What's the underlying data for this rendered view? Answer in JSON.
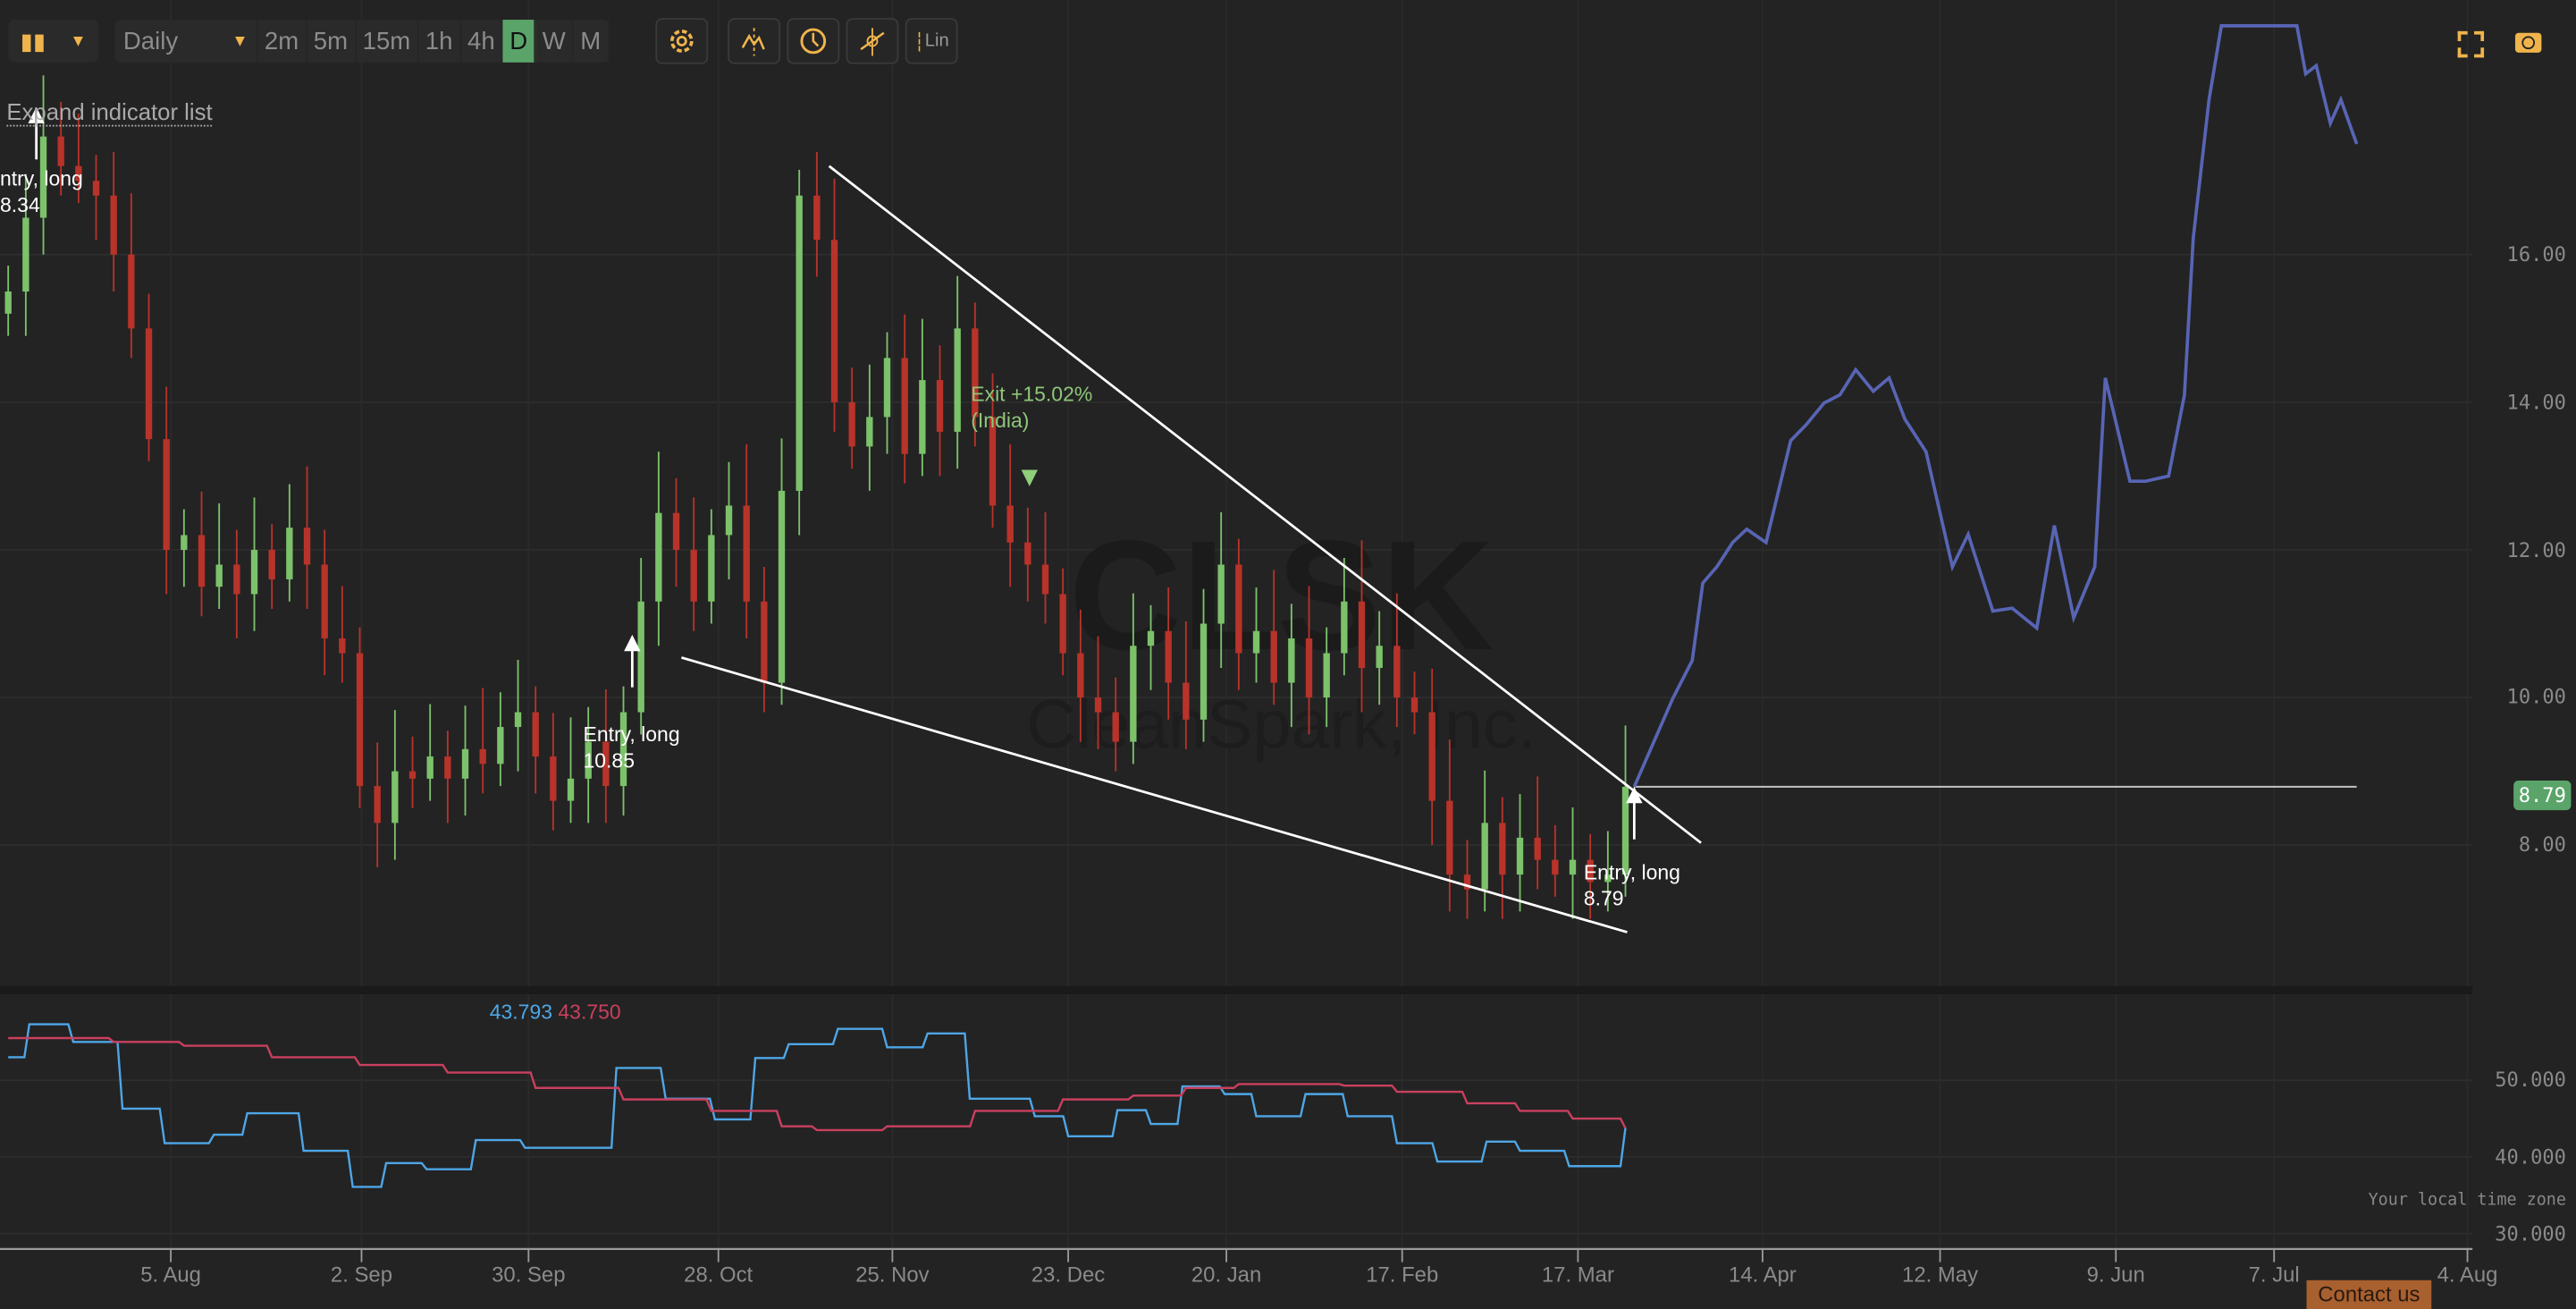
{
  "toolbar": {
    "chart_type_icon": "candlestick-icon",
    "interval_selected": "Daily",
    "intervals": [
      "2m",
      "5m",
      "15m",
      "1h",
      "4h",
      "D",
      "W",
      "M"
    ],
    "active_interval": "D",
    "icons": [
      "gear-icon",
      "indicators-icon",
      "clock-icon",
      "crosshair-icon"
    ],
    "scale_label": "Lin",
    "right_icons": [
      "fullscreen-icon",
      "camera-icon"
    ]
  },
  "expand_indicator_list": "Expand indicator list",
  "watermark": {
    "ticker": "CLSK",
    "company": "CleanSpark, Inc."
  },
  "annotations": {
    "entry1": {
      "line1": "ntry, long",
      "line2": "8.34"
    },
    "entry2": {
      "line1": "Entry, long",
      "line2": "10.85"
    },
    "entry3": {
      "line1": "Entry, long",
      "line2": "8.79"
    },
    "exit1": {
      "line1": "Exit +15.02%",
      "line2": "(India)"
    }
  },
  "last_price_label": "8.79",
  "indicator_values": {
    "blue": "43.793",
    "red": "43.750"
  },
  "footer": {
    "timezone": "Your local time zone",
    "contact": "Contact us"
  },
  "colors": {
    "up": "#7cc26b",
    "down": "#b8332a",
    "forecast": "#5865b5",
    "ind_blue": "#4ea6e6",
    "ind_red": "#c9405e",
    "last_price": "#5aa469",
    "accent": "#f0b44c"
  },
  "chart_data": [
    {
      "type": "candlestick",
      "title": "CLSK",
      "ylim": [
        6.09,
        19.45
      ],
      "y_ticks": [
        "8.00",
        "10.00",
        "12.00",
        "14.00",
        "16.00"
      ],
      "y_tick_values": [
        8,
        10,
        12,
        14,
        16
      ],
      "x_ticks": [
        [
          "5. Aug",
          9.25
        ],
        [
          "2. Sep",
          20.1
        ],
        [
          "30. Sep",
          29.6
        ],
        [
          "28. Oct",
          40.4
        ],
        [
          "25. Nov",
          50.3
        ],
        [
          "23. Dec",
          60.3
        ],
        [
          "20. Jan",
          69.3
        ],
        [
          "17. Feb",
          79.3
        ],
        [
          "17. Mar",
          89.3
        ],
        [
          "14. Apr",
          99.8
        ],
        [
          "12. May",
          109.9
        ],
        [
          "9. Jun",
          119.9
        ],
        [
          "7. Jul",
          128.9
        ],
        [
          "4. Aug",
          139.9
        ]
      ],
      "xlim": [
        0,
        146
      ],
      "closes": [
        15.5,
        16.5,
        17.6,
        17.2,
        17.0,
        16.8,
        16.0,
        15.0,
        13.5,
        12.0,
        12.2,
        11.5,
        11.8,
        11.4,
        12.0,
        11.6,
        12.3,
        11.8,
        10.8,
        10.6,
        8.8,
        8.3,
        9.0,
        8.9,
        9.2,
        8.9,
        9.3,
        9.1,
        9.6,
        9.8,
        9.2,
        8.6,
        8.9,
        9.4,
        8.8,
        9.8,
        11.3,
        12.5,
        12.0,
        11.3,
        12.2,
        12.6,
        11.3,
        10.2,
        12.8,
        16.8,
        16.2,
        14.0,
        13.4,
        13.8,
        14.6,
        13.3,
        14.3,
        13.6,
        15.0,
        13.8,
        12.6,
        12.1,
        11.8,
        11.4,
        10.6,
        10.0,
        9.8,
        9.4,
        10.7,
        10.9,
        10.2,
        9.7,
        11.0,
        11.8,
        10.6,
        10.9,
        10.2,
        10.8,
        10.0,
        10.6,
        11.3,
        10.4,
        10.7,
        10.0,
        9.8,
        8.6,
        7.6,
        7.4,
        8.3,
        7.6,
        8.1,
        7.8,
        7.6,
        7.8,
        7.5,
        7.6,
        8.79
      ],
      "forecast": [
        [
          92.5,
          8.79
        ],
        [
          94.7,
          9.99
        ],
        [
          95.8,
          10.5
        ],
        [
          96.4,
          11.55
        ],
        [
          97.2,
          11.77
        ],
        [
          98.1,
          12.1
        ],
        [
          98.9,
          12.28
        ],
        [
          100,
          12.1
        ],
        [
          101.4,
          13.48
        ],
        [
          102.3,
          13.7
        ],
        [
          103.3,
          13.99
        ],
        [
          104.2,
          14.1
        ],
        [
          105.1,
          14.44
        ],
        [
          106.1,
          14.15
        ],
        [
          107,
          14.33
        ],
        [
          107.9,
          13.77
        ],
        [
          109.1,
          13.33
        ],
        [
          110.6,
          11.77
        ],
        [
          111.5,
          12.21
        ],
        [
          112.9,
          11.17
        ],
        [
          114,
          11.21
        ],
        [
          115.4,
          10.94
        ],
        [
          116.4,
          12.33
        ],
        [
          117.5,
          11.08
        ],
        [
          118.7,
          11.77
        ],
        [
          119.3,
          14.33
        ],
        [
          120.7,
          12.93
        ],
        [
          121.6,
          12.93
        ],
        [
          122.9,
          13.0
        ],
        [
          123.8,
          14.1
        ],
        [
          124.3,
          16.22
        ],
        [
          125.2,
          18.1
        ],
        [
          125.9,
          19.1
        ],
        [
          130.2,
          19.1
        ],
        [
          130.7,
          18.45
        ],
        [
          131.3,
          18.56
        ],
        [
          132.1,
          17.78
        ],
        [
          132.7,
          18.1
        ],
        [
          133.6,
          17.5
        ]
      ],
      "trendlines": [
        [
          [
            46.7,
            17.2
          ],
          [
            96.3,
            8.03
          ]
        ],
        [
          [
            38.3,
            10.54
          ],
          [
            92.1,
            6.82
          ]
        ]
      ],
      "last_price": 8.79,
      "last_price_line": [
        92.5,
        133.6
      ],
      "entries": [
        [
          1.6,
          8.34
        ],
        [
          35.5,
          10.85
        ],
        [
          92.5,
          8.79
        ]
      ],
      "exits": [
        [
          58.1,
          12.95
        ]
      ]
    },
    {
      "type": "line",
      "ylim": [
        28,
        61
      ],
      "y_ticks": [
        "30.000",
        "40.000",
        "50.000"
      ],
      "y_tick_values": [
        30,
        40,
        50
      ],
      "series": [
        {
          "name": "blue",
          "steps": [
            [
              0,
              53
            ],
            [
              1.2,
              57.3
            ],
            [
              3.7,
              55
            ],
            [
              6.5,
              46.3
            ],
            [
              8.9,
              41.8
            ],
            [
              11.7,
              42.9
            ],
            [
              13.6,
              45.7
            ],
            [
              16.8,
              40.8
            ],
            [
              19.6,
              36.1
            ],
            [
              21.5,
              39.2
            ],
            [
              23.8,
              38.4
            ],
            [
              26.6,
              42.2
            ],
            [
              29.4,
              41.2
            ],
            [
              34.6,
              51.6
            ],
            [
              37.4,
              47.6
            ],
            [
              40.2,
              44.9
            ],
            [
              42.5,
              52.9
            ],
            [
              44.4,
              54.7
            ],
            [
              47.2,
              56.7
            ],
            [
              50,
              54.3
            ],
            [
              52.3,
              56.1
            ],
            [
              54.7,
              47.6
            ],
            [
              58.4,
              45.3
            ],
            [
              60.3,
              42.7
            ],
            [
              63.1,
              46.1
            ],
            [
              65,
              44.3
            ],
            [
              66.8,
              49.2
            ],
            [
              69.2,
              48.2
            ],
            [
              71,
              45.3
            ],
            [
              73.8,
              48.2
            ],
            [
              76.2,
              45.3
            ],
            [
              79,
              41.8
            ],
            [
              81.3,
              39.4
            ],
            [
              84.1,
              42
            ],
            [
              86,
              40.8
            ],
            [
              88.8,
              38.8
            ],
            [
              92,
              43.79
            ]
          ]
        },
        {
          "name": "red",
          "steps": [
            [
              0,
              55.5
            ],
            [
              6,
              55
            ],
            [
              10,
              54.5
            ],
            [
              15,
              53
            ],
            [
              20,
              52
            ],
            [
              25,
              51
            ],
            [
              30,
              49
            ],
            [
              35,
              47.5
            ],
            [
              40,
              46
            ],
            [
              44,
              44
            ],
            [
              46,
              43.5
            ],
            [
              50,
              44
            ],
            [
              55,
              46
            ],
            [
              60,
              47.5
            ],
            [
              64,
              48
            ],
            [
              67,
              49
            ],
            [
              70,
              49.5
            ],
            [
              76,
              49.3
            ],
            [
              79,
              48.5
            ],
            [
              83,
              47
            ],
            [
              86,
              46
            ],
            [
              89,
              45
            ],
            [
              92,
              43.75
            ]
          ]
        }
      ]
    }
  ]
}
